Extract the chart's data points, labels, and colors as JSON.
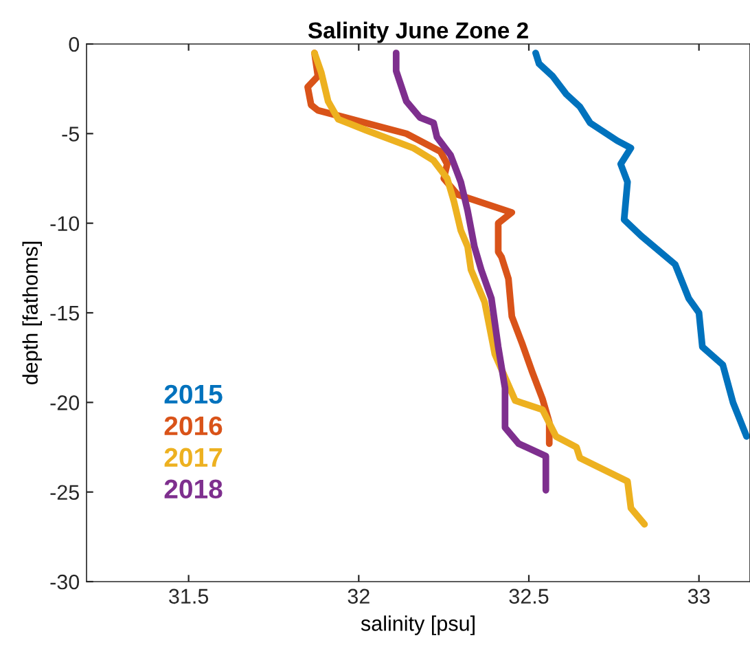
{
  "chart_data": {
    "type": "line",
    "title": "Salinity June Zone 2",
    "xlabel": "salinity [psu]",
    "ylabel": "depth [fathoms]",
    "xlim": [
      31.2,
      33.15
    ],
    "xticks": [
      31.5,
      32,
      32.5,
      33
    ],
    "ylim": [
      -30,
      0
    ],
    "yticks": [
      -30,
      -25,
      -20,
      -15,
      -10,
      -5,
      0
    ],
    "legend": "bottom left",
    "grid": false,
    "series": [
      {
        "name": "2015",
        "color": "#0072bd",
        "x": [
          32.52,
          32.53,
          32.57,
          32.61,
          32.65,
          32.68,
          32.76,
          32.8,
          32.77,
          32.79,
          32.78,
          32.83,
          32.93,
          32.97,
          33.0,
          33.01,
          33.07,
          33.1,
          33.14
        ],
        "values": [
          -0.5,
          -1.1,
          -1.8,
          -2.8,
          -3.5,
          -4.4,
          -5.4,
          -5.8,
          -6.7,
          -7.7,
          -9.8,
          -10.7,
          -12.3,
          -14.2,
          -15.0,
          -16.9,
          -17.9,
          -20.0,
          -21.9
        ]
      },
      {
        "name": "2016",
        "color": "#d95319",
        "x": [
          31.87,
          31.88,
          31.85,
          31.86,
          31.88,
          32.02,
          32.14,
          32.24,
          32.26,
          32.25,
          32.29,
          32.45,
          32.41,
          32.41,
          32.42,
          32.44,
          32.45,
          32.48,
          32.51,
          32.54,
          32.56,
          32.56
        ],
        "values": [
          -0.5,
          -1.8,
          -2.4,
          -3.4,
          -3.7,
          -4.4,
          -5.0,
          -6.0,
          -6.7,
          -7.5,
          -8.4,
          -9.4,
          -10.0,
          -11.6,
          -11.9,
          -13.1,
          -15.2,
          -16.7,
          -18.3,
          -19.8,
          -21.1,
          -22.3
        ]
      },
      {
        "name": "2017",
        "color": "#edb120",
        "x": [
          31.87,
          31.89,
          31.91,
          31.94,
          32.02,
          32.16,
          32.22,
          32.26,
          32.28,
          32.3,
          32.32,
          32.33,
          32.37,
          32.4,
          32.46,
          32.54,
          32.58,
          32.64,
          32.65,
          32.79,
          32.8,
          32.84
        ],
        "values": [
          -0.5,
          -1.6,
          -3.2,
          -4.2,
          -4.8,
          -5.8,
          -6.5,
          -7.5,
          -8.8,
          -10.4,
          -11.3,
          -12.6,
          -14.4,
          -17.3,
          -19.9,
          -20.4,
          -21.9,
          -22.5,
          -23.1,
          -24.4,
          -25.9,
          -26.8
        ]
      },
      {
        "name": "2018",
        "color": "#7e2f8e",
        "x": [
          32.11,
          32.11,
          32.14,
          32.18,
          32.22,
          32.23,
          32.27,
          32.3,
          32.32,
          32.34,
          32.36,
          32.39,
          32.41,
          32.43,
          32.43,
          32.47,
          32.55,
          32.55
        ],
        "values": [
          -0.5,
          -1.5,
          -3.2,
          -4.1,
          -4.4,
          -5.2,
          -6.2,
          -7.7,
          -9.3,
          -11.3,
          -12.6,
          -14.2,
          -16.9,
          -19.2,
          -21.4,
          -22.3,
          -23.0,
          -24.9
        ]
      }
    ]
  }
}
